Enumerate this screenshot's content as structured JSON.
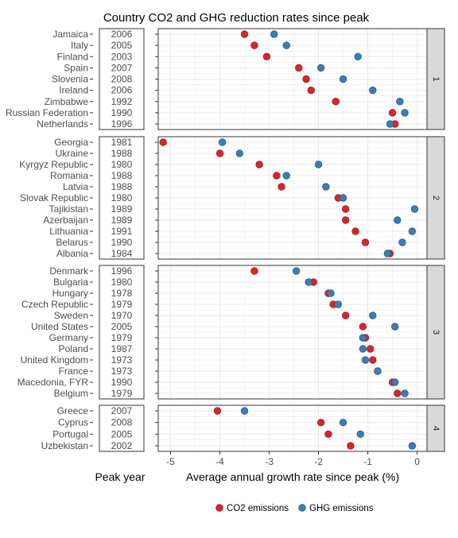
{
  "chart_data": {
    "type": "scatter",
    "title": "Country CO2 and GHG reduction rates since peak",
    "xlabel": "Average annual growth rate since peak (%)",
    "left_label": "Peak year",
    "xlim": [
      -5.25,
      0.2
    ],
    "x_ticks": [
      -5,
      -4,
      -3,
      -2,
      -1,
      0
    ],
    "x_tick_labels": [
      "-5",
      "-4",
      "-3",
      "-2",
      "-1",
      "0"
    ],
    "grid": true,
    "legend_position": "bottom",
    "colors": {
      "co2": "#d7262b",
      "ghg": "#3b7db5",
      "strip": "#d9d9d9",
      "grid": "#ebebeb"
    },
    "series": [
      {
        "name": "CO2 emissions",
        "key": "co2"
      },
      {
        "name": "GHG emissions",
        "key": "ghg"
      }
    ],
    "panels": [
      {
        "label": "1",
        "rows": [
          {
            "country": "Jamaica",
            "year": "2006",
            "co2": -3.5,
            "ghg": -2.9
          },
          {
            "country": "Italy",
            "year": "2005",
            "co2": -3.3,
            "ghg": -2.65
          },
          {
            "country": "Finland",
            "year": "2003",
            "co2": -3.05,
            "ghg": -1.2
          },
          {
            "country": "Spain",
            "year": "2007",
            "co2": -2.4,
            "ghg": -1.95
          },
          {
            "country": "Slovenia",
            "year": "2008",
            "co2": -2.25,
            "ghg": -1.5
          },
          {
            "country": "Ireland",
            "year": "2006",
            "co2": -2.15,
            "ghg": -0.9
          },
          {
            "country": "Zimbabwe",
            "year": "1992",
            "co2": -1.65,
            "ghg": -0.35
          },
          {
            "country": "Russian Federation",
            "year": "1990",
            "co2": -0.5,
            "ghg": -0.25
          },
          {
            "country": "Netherlands",
            "year": "1996",
            "co2": -0.45,
            "ghg": -0.55
          }
        ]
      },
      {
        "label": "2",
        "rows": [
          {
            "country": "Georgia",
            "year": "1981",
            "co2": -5.15,
            "ghg": -3.95
          },
          {
            "country": "Ukraine",
            "year": "1988",
            "co2": -4.0,
            "ghg": -3.6
          },
          {
            "country": "Kyrgyz Republic",
            "year": "1980",
            "co2": -3.2,
            "ghg": -2.0
          },
          {
            "country": "Romania",
            "year": "1988",
            "co2": -2.85,
            "ghg": -2.65
          },
          {
            "country": "Latvia",
            "year": "1988",
            "co2": -2.75,
            "ghg": -1.85
          },
          {
            "country": "Slovak Republic",
            "year": "1980",
            "co2": -1.6,
            "ghg": -1.5
          },
          {
            "country": "Tajikistan",
            "year": "1989",
            "co2": -1.45,
            "ghg": -0.05
          },
          {
            "country": "Azerbaijan",
            "year": "1989",
            "co2": -1.45,
            "ghg": -0.4
          },
          {
            "country": "Lithuania",
            "year": "1991",
            "co2": -1.25,
            "ghg": -0.1
          },
          {
            "country": "Belarus",
            "year": "1990",
            "co2": -1.05,
            "ghg": -0.3
          },
          {
            "country": "Albania",
            "year": "1984",
            "co2": -0.55,
            "ghg": -0.6
          }
        ]
      },
      {
        "label": "3",
        "rows": [
          {
            "country": "Denmark",
            "year": "1996",
            "co2": -3.3,
            "ghg": -2.45
          },
          {
            "country": "Bulgaria",
            "year": "1980",
            "co2": -2.1,
            "ghg": -2.2
          },
          {
            "country": "Hungary",
            "year": "1978",
            "co2": -1.8,
            "ghg": -1.75
          },
          {
            "country": "Czech Republic",
            "year": "1979",
            "co2": -1.7,
            "ghg": -1.6
          },
          {
            "country": "Sweden",
            "year": "1970",
            "co2": -1.45,
            "ghg": -0.9
          },
          {
            "country": "United States",
            "year": "2005",
            "co2": -1.1,
            "ghg": -0.45
          },
          {
            "country": "Germany",
            "year": "1979",
            "co2": -1.05,
            "ghg": -1.1
          },
          {
            "country": "Poland",
            "year": "1987",
            "co2": -0.95,
            "ghg": -1.1
          },
          {
            "country": "United Kingdom",
            "year": "1973",
            "co2": -0.9,
            "ghg": -1.05
          },
          {
            "country": "France",
            "year": "1973",
            "co2": -0.8,
            "ghg": -0.8
          },
          {
            "country": "Macedonia, FYR",
            "year": "1990",
            "co2": -0.5,
            "ghg": -0.45
          },
          {
            "country": "Belgium",
            "year": "1979",
            "co2": -0.4,
            "ghg": -0.25
          }
        ]
      },
      {
        "label": "4",
        "rows": [
          {
            "country": "Greece",
            "year": "2007",
            "co2": -4.05,
            "ghg": -3.5
          },
          {
            "country": "Cyprus",
            "year": "2008",
            "co2": -1.95,
            "ghg": -1.5
          },
          {
            "country": "Portugal",
            "year": "2005",
            "co2": -1.8,
            "ghg": -1.15
          },
          {
            "country": "Uzbekistan",
            "year": "2002",
            "co2": -1.35,
            "ghg": -0.1
          }
        ]
      }
    ]
  }
}
